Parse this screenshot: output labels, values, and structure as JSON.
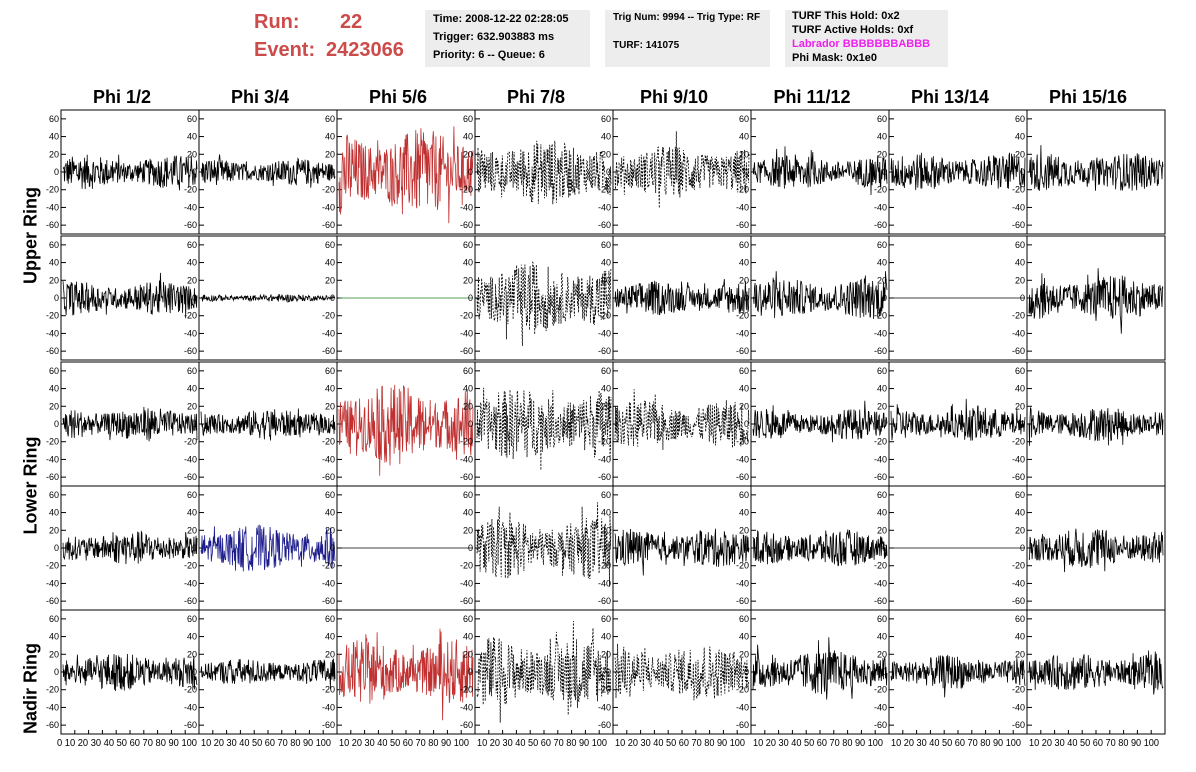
{
  "header": {
    "run_label": "Run:",
    "run_value": "22",
    "event_label": "Event:",
    "event_value": "2423066",
    "box1": [
      "Time: 2008-12-22 02:28:05",
      "Trigger: 632.903883 ms",
      "Priority: 6 -- Queue: 6"
    ],
    "box2": [
      "Trig Num: 9994 -- Trig Type: RF",
      "TURF: 141075"
    ],
    "box3": [
      "TURF This Hold: 0x2",
      "TURF Active Holds: 0xf",
      "Labrador BBBBBBBABBB",
      "Phi Mask: 0x1e0"
    ],
    "labrador_color": "#ee22ee"
  },
  "chart_data": {
    "type": "line",
    "columns": [
      "Phi 1/2",
      "Phi 3/4",
      "Phi 5/6",
      "Phi 7/8",
      "Phi 9/10",
      "Phi 11/12",
      "Phi 13/14",
      "Phi 15/16"
    ],
    "row_groups": [
      "Upper Ring",
      "Lower Ring",
      "Nadir Ring"
    ],
    "ylim": [
      -70,
      70
    ],
    "xlim": [
      0,
      100
    ],
    "y_ticks": [
      -60,
      -40,
      -20,
      0,
      20,
      40,
      60
    ],
    "x_ticks": [
      0,
      10,
      20,
      30,
      40,
      50,
      60,
      70,
      80,
      90,
      100
    ],
    "x_tick_text": [
      "0 10 20 30 40 50 60 70 80 90 100",
      "10 20 30 40 50 60 70 80 90 100"
    ],
    "colors": {
      "black": "#000000",
      "red": "#c03030",
      "blue": "#1c1c8c",
      "green": "#208020"
    },
    "rows": [
      [
        {
          "style": "black",
          "amp": 18
        },
        {
          "style": "black",
          "amp": 14
        },
        {
          "style": "red",
          "amp": 45
        },
        {
          "style": "dashed",
          "amp": 35
        },
        {
          "style": "dashed",
          "amp": 28
        },
        {
          "style": "black",
          "amp": 18
        },
        {
          "style": "black",
          "amp": 20
        },
        {
          "style": "black",
          "amp": 20
        }
      ],
      [
        {
          "style": "black",
          "amp": 18
        },
        {
          "style": "black",
          "amp": 4
        },
        {
          "style": "flat-green",
          "amp": 0
        },
        {
          "style": "dashed",
          "amp": 38
        },
        {
          "style": "black",
          "amp": 18
        },
        {
          "style": "black",
          "amp": 22
        },
        {
          "style": "flat-black",
          "amp": 0
        },
        {
          "style": "black",
          "amp": 24
        }
      ],
      [
        {
          "style": "black",
          "amp": 18
        },
        {
          "style": "black",
          "amp": 16
        },
        {
          "style": "red",
          "amp": 42
        },
        {
          "style": "dashed",
          "amp": 38
        },
        {
          "style": "dashed",
          "amp": 25
        },
        {
          "style": "black",
          "amp": 16
        },
        {
          "style": "black",
          "amp": 18
        },
        {
          "style": "black",
          "amp": 18
        }
      ],
      [
        {
          "style": "black",
          "amp": 18
        },
        {
          "style": "blue",
          "amp": 24
        },
        {
          "style": "flat-black",
          "amp": 0
        },
        {
          "style": "dashed",
          "amp": 32
        },
        {
          "style": "black",
          "amp": 20
        },
        {
          "style": "black",
          "amp": 20
        },
        {
          "style": "flat-black",
          "amp": 0
        },
        {
          "style": "black",
          "amp": 22
        }
      ],
      [
        {
          "style": "black",
          "amp": 20
        },
        {
          "style": "black",
          "amp": 14
        },
        {
          "style": "red",
          "amp": 34
        },
        {
          "style": "dashed",
          "amp": 38
        },
        {
          "style": "dashed",
          "amp": 30
        },
        {
          "style": "black",
          "amp": 24
        },
        {
          "style": "black",
          "amp": 18
        },
        {
          "style": "black",
          "amp": 20
        }
      ]
    ]
  }
}
